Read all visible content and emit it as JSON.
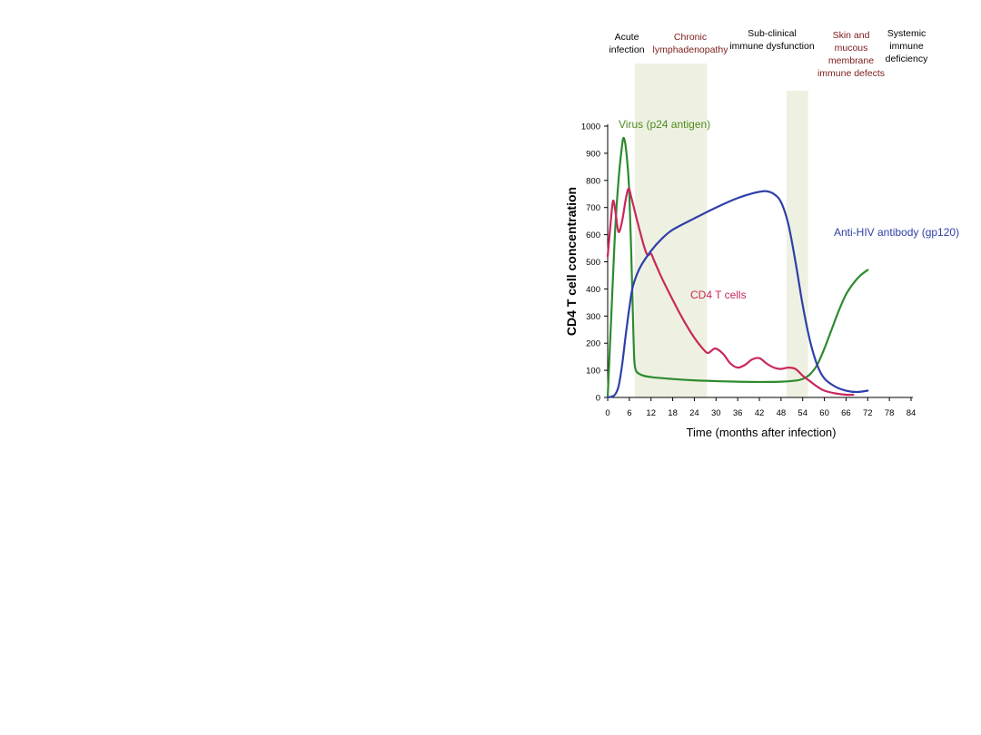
{
  "chart_data": {
    "type": "line",
    "xlabel": "Time (months after infection)",
    "ylabel": "CD4 T cell concentration",
    "xlim": [
      0,
      84
    ],
    "ylim": [
      0,
      1000
    ],
    "x_ticks": [
      0,
      6,
      12,
      18,
      24,
      30,
      36,
      42,
      48,
      54,
      60,
      66,
      72,
      78,
      84
    ],
    "y_ticks": [
      0,
      100,
      200,
      300,
      400,
      500,
      600,
      700,
      800,
      900,
      1000
    ],
    "grid": false,
    "phases": [
      {
        "label": "Acute infection",
        "lines": [
          "Acute",
          "infection"
        ],
        "color": "#000000",
        "at": 4.5
      },
      {
        "label": "Chronic lymphadenopathy",
        "lines": [
          "Chronic",
          "lymphadenopathy"
        ],
        "color": "#7a1a1a",
        "at": 18.5,
        "shaded": [
          7.5,
          27.5
        ]
      },
      {
        "label": "Sub-clinical immune dysfunction",
        "lines": [
          "Sub-clinical",
          "immune dysfunction"
        ],
        "color": "#000000",
        "at": 37.2
      },
      {
        "label": "Skin and mucous membrane immune defects",
        "lines": [
          "Skin and",
          "mucous",
          "membrane",
          "immune defects"
        ],
        "color": "#7a1a1a",
        "at": 52.5,
        "shaded": [
          49.5,
          55.5
        ]
      },
      {
        "label": "Systemic immune deficiency",
        "lines": [
          "Systemic",
          "immune",
          "deficiency"
        ],
        "color": "#000000",
        "at": 64.5
      }
    ],
    "series": [
      {
        "name": "Virus (p24 antigen)",
        "color": "#2e8b2e",
        "label_color": "#4f8a1f",
        "points": [
          [
            0,
            0
          ],
          [
            1,
            300
          ],
          [
            2,
            600
          ],
          [
            3,
            800
          ],
          [
            4,
            930
          ],
          [
            4.5,
            955
          ],
          [
            5.2,
            900
          ],
          [
            6,
            750
          ],
          [
            6.8,
            400
          ],
          [
            7.2,
            200
          ],
          [
            7.6,
            110
          ],
          [
            9,
            85
          ],
          [
            12,
            75
          ],
          [
            18,
            68
          ],
          [
            24,
            63
          ],
          [
            30,
            60
          ],
          [
            36,
            58
          ],
          [
            42,
            57
          ],
          [
            48,
            58
          ],
          [
            52,
            62
          ],
          [
            54,
            68
          ],
          [
            56,
            85
          ],
          [
            58,
            120
          ],
          [
            60,
            180
          ],
          [
            62,
            250
          ],
          [
            64,
            320
          ],
          [
            66,
            380
          ],
          [
            68,
            420
          ],
          [
            70,
            450
          ],
          [
            72,
            470
          ]
        ]
      },
      {
        "name": "CD4 T cells",
        "color": "#c8285a",
        "label_color": "#c8285a",
        "points": [
          [
            0,
            520
          ],
          [
            0.8,
            640
          ],
          [
            1.5,
            725
          ],
          [
            2.2,
            680
          ],
          [
            3,
            610
          ],
          [
            4,
            650
          ],
          [
            5,
            730
          ],
          [
            5.8,
            770
          ],
          [
            6.5,
            740
          ],
          [
            8,
            660
          ],
          [
            10,
            560
          ],
          [
            11,
            525
          ],
          [
            12,
            530
          ],
          [
            13,
            500
          ],
          [
            15,
            440
          ],
          [
            18,
            360
          ],
          [
            21,
            285
          ],
          [
            24,
            220
          ],
          [
            27,
            170
          ],
          [
            28,
            165
          ],
          [
            29,
            175
          ],
          [
            30,
            180
          ],
          [
            32,
            160
          ],
          [
            34,
            125
          ],
          [
            36,
            110
          ],
          [
            38,
            120
          ],
          [
            40,
            140
          ],
          [
            42,
            145
          ],
          [
            44,
            125
          ],
          [
            46,
            110
          ],
          [
            48,
            105
          ],
          [
            50,
            110
          ],
          [
            52,
            105
          ],
          [
            54,
            80
          ],
          [
            56,
            60
          ],
          [
            58,
            40
          ],
          [
            60,
            25
          ],
          [
            63,
            15
          ],
          [
            66,
            10
          ],
          [
            68,
            10
          ]
        ]
      },
      {
        "name": "Anti-HIV antibody (gp120)",
        "color": "#2f3fa8",
        "label_color": "#2f3fa8",
        "points": [
          [
            0,
            0
          ],
          [
            1,
            3
          ],
          [
            2,
            10
          ],
          [
            3,
            40
          ],
          [
            4,
            120
          ],
          [
            5,
            230
          ],
          [
            6,
            330
          ],
          [
            7,
            410
          ],
          [
            9,
            480
          ],
          [
            12,
            540
          ],
          [
            15,
            585
          ],
          [
            18,
            618
          ],
          [
            24,
            660
          ],
          [
            30,
            700
          ],
          [
            36,
            735
          ],
          [
            40,
            752
          ],
          [
            42,
            758
          ],
          [
            44,
            760
          ],
          [
            46,
            750
          ],
          [
            48,
            720
          ],
          [
            50,
            640
          ],
          [
            52,
            500
          ],
          [
            54,
            340
          ],
          [
            56,
            210
          ],
          [
            58,
            120
          ],
          [
            60,
            70
          ],
          [
            63,
            40
          ],
          [
            66,
            25
          ],
          [
            69,
            20
          ],
          [
            72,
            25
          ]
        ]
      }
    ]
  }
}
